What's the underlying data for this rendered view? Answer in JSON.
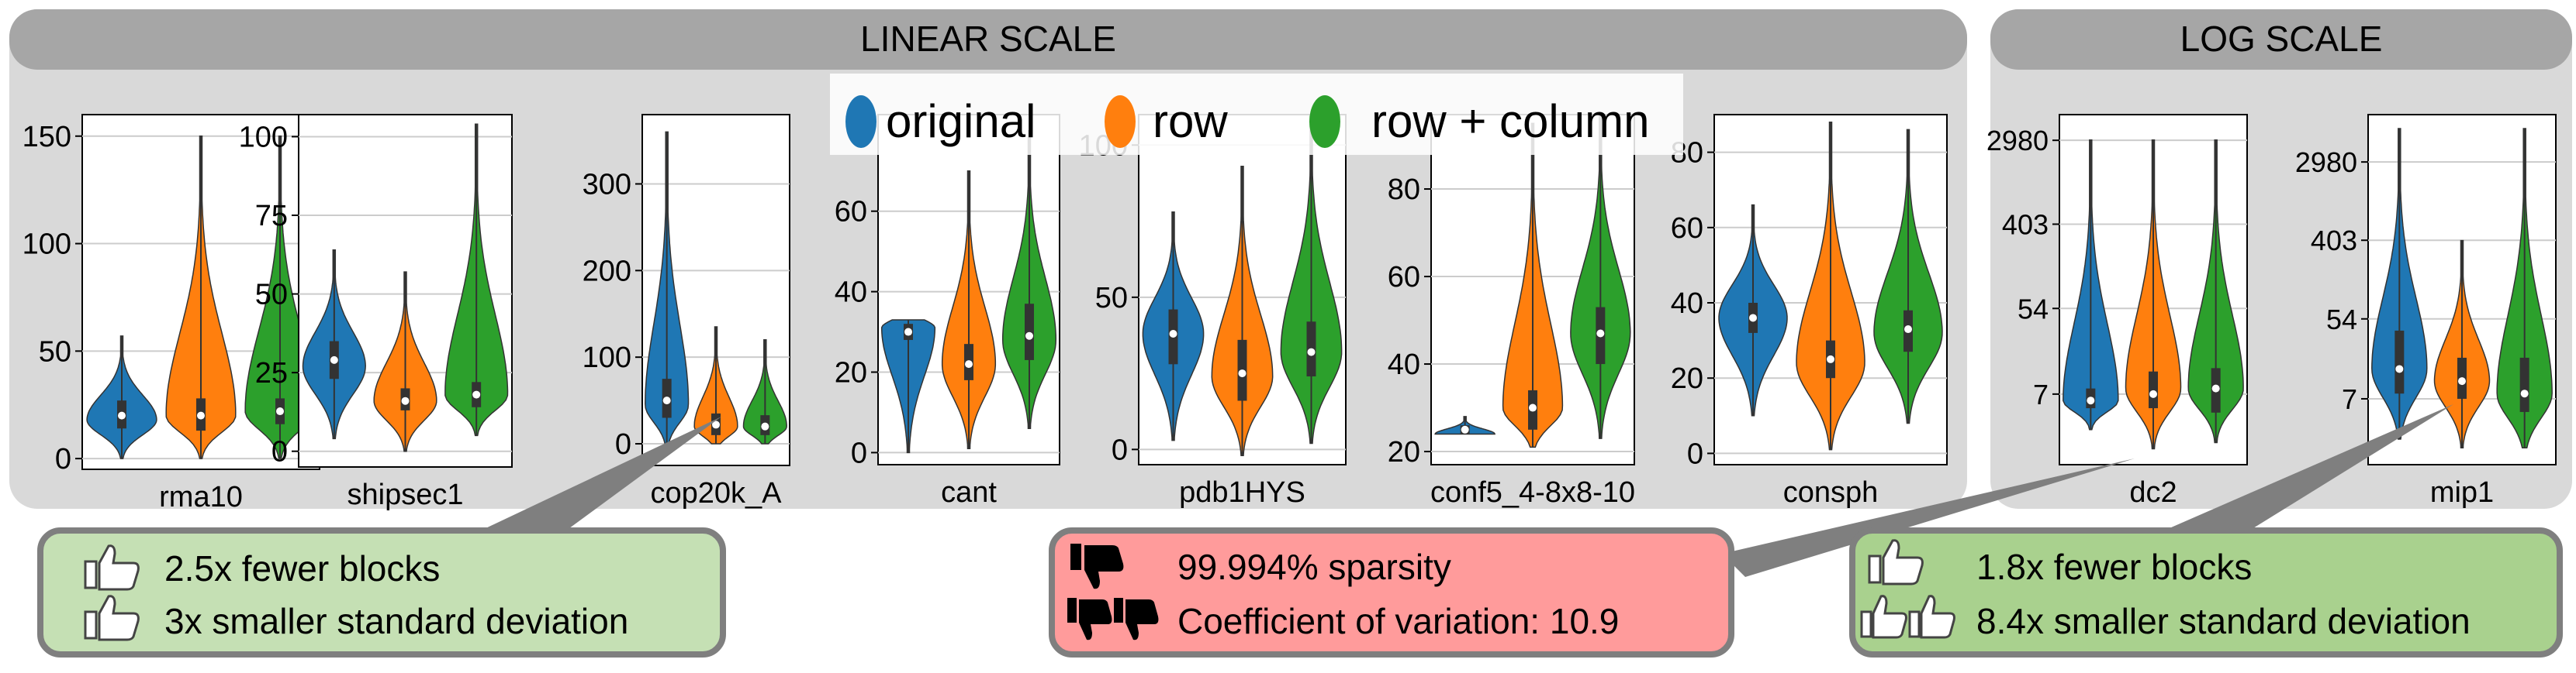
{
  "panels": {
    "linear_title": "LINEAR SCALE",
    "log_title": "LOG SCALE"
  },
  "legend": [
    {
      "label": "original",
      "color": "#1f77b4"
    },
    {
      "label": "row",
      "color": "#ff7f0e"
    },
    {
      "label": "row + column",
      "color": "#2ca02c"
    }
  ],
  "chart_data": [
    {
      "type": "violin",
      "xlabel": "rma10",
      "scale": "linear",
      "ylim": [
        -5,
        160
      ],
      "yticks": [
        0,
        50,
        100,
        150
      ],
      "yticklabels": [
        "0",
        "50",
        "100",
        "150"
      ],
      "series": [
        {
          "name": "original",
          "min": 0,
          "q1": 14,
          "median": 20,
          "q3": 27,
          "max": 57,
          "mode": 18
        },
        {
          "name": "row",
          "min": 0,
          "q1": 13,
          "median": 20,
          "q3": 28,
          "max": 150,
          "mode": 20
        },
        {
          "name": "row + column",
          "min": 0,
          "q1": 16,
          "median": 22,
          "q3": 28,
          "max": 150,
          "mode": 22
        }
      ]
    },
    {
      "type": "violin",
      "xlabel": "shipsec1",
      "scale": "linear",
      "ylim": [
        -5,
        107
      ],
      "yticks": [
        0,
        25,
        50,
        75,
        100
      ],
      "yticklabels": [
        "0",
        "25",
        "50",
        "75",
        "100"
      ],
      "series": [
        {
          "name": "original",
          "min": 4,
          "q1": 23,
          "median": 29,
          "q3": 35,
          "max": 64,
          "mode": 27
        },
        {
          "name": "row",
          "min": 0,
          "q1": 13,
          "median": 16,
          "q3": 20,
          "max": 57,
          "mode": 16
        },
        {
          "name": "row + column",
          "min": 5,
          "q1": 14,
          "median": 18,
          "q3": 22,
          "max": 104,
          "mode": 18
        }
      ]
    },
    {
      "type": "violin",
      "xlabel": "cop20k_A",
      "scale": "linear",
      "ylim": [
        -25,
        380
      ],
      "yticks": [
        0,
        100,
        200,
        300
      ],
      "yticklabels": [
        "0",
        "100",
        "200",
        "300"
      ],
      "series": [
        {
          "name": "original",
          "min": 0,
          "q1": 30,
          "median": 50,
          "q3": 75,
          "max": 360,
          "mode": 45
        },
        {
          "name": "row",
          "min": 0,
          "q1": 10,
          "median": 22,
          "q3": 35,
          "max": 135,
          "mode": 20
        },
        {
          "name": "row + column",
          "min": 0,
          "q1": 10,
          "median": 20,
          "q3": 33,
          "max": 120,
          "mode": 20
        }
      ]
    },
    {
      "type": "violin",
      "xlabel": "cant",
      "scale": "linear",
      "ylim": [
        -3,
        84
      ],
      "yticks": [
        0,
        20,
        40,
        60
      ],
      "yticklabels": [
        "0",
        "20",
        "40",
        "60"
      ],
      "series": [
        {
          "name": "original",
          "min": 0,
          "q1": 28,
          "median": 30,
          "q3": 32,
          "max": 33,
          "mode": 31
        },
        {
          "name": "row",
          "min": 1,
          "q1": 18,
          "median": 22,
          "q3": 27,
          "max": 70,
          "mode": 22
        },
        {
          "name": "row + column",
          "min": 6,
          "q1": 23,
          "median": 29,
          "q3": 37,
          "max": 80,
          "mode": 28
        }
      ]
    },
    {
      "type": "violin",
      "xlabel": "pdb1HYS",
      "scale": "linear",
      "ylim": [
        -5,
        110
      ],
      "yticks": [
        0,
        50,
        100
      ],
      "yticklabels": [
        "0",
        "50",
        "100"
      ],
      "series": [
        {
          "name": "original",
          "min": 3,
          "q1": 28,
          "median": 38,
          "q3": 46,
          "max": 78,
          "mode": 38
        },
        {
          "name": "row",
          "min": -2,
          "q1": 16,
          "median": 25,
          "q3": 36,
          "max": 93,
          "mode": 24
        },
        {
          "name": "row + column",
          "min": 2,
          "q1": 24,
          "median": 32,
          "q3": 42,
          "max": 110,
          "mode": 32
        }
      ]
    },
    {
      "type": "violin",
      "xlabel": "conf5_4-8x8-10",
      "scale": "linear",
      "ylim": [
        17,
        97
      ],
      "yticks": [
        20,
        40,
        60,
        80
      ],
      "yticklabels": [
        "20",
        "40",
        "60",
        "80"
      ],
      "series": [
        {
          "name": "original",
          "min": 24,
          "q1": 24,
          "median": 25,
          "q3": 26,
          "max": 28,
          "mode": 24
        },
        {
          "name": "row",
          "min": 21,
          "q1": 25,
          "median": 30,
          "q3": 34,
          "max": 95,
          "mode": 30
        },
        {
          "name": "row + column",
          "min": 23,
          "q1": 40,
          "median": 47,
          "q3": 53,
          "max": 97,
          "mode": 47
        }
      ]
    },
    {
      "type": "violin",
      "xlabel": "consph",
      "scale": "linear",
      "ylim": [
        -3,
        90
      ],
      "yticks": [
        0,
        20,
        40,
        60,
        80
      ],
      "yticklabels": [
        "0",
        "20",
        "40",
        "60",
        "80"
      ],
      "series": [
        {
          "name": "original",
          "min": 10,
          "q1": 32,
          "median": 36,
          "q3": 40,
          "max": 66,
          "mode": 36
        },
        {
          "name": "row",
          "min": 1,
          "q1": 20,
          "median": 25,
          "q3": 30,
          "max": 88,
          "mode": 24
        },
        {
          "name": "row + column",
          "min": 8,
          "q1": 27,
          "median": 33,
          "q3": 38,
          "max": 86,
          "mode": 32
        }
      ]
    },
    {
      "type": "violin",
      "xlabel": "dc2",
      "scale": "log",
      "ylim": [
        1.3,
        5500
      ],
      "yticks": [
        7,
        54,
        403,
        2980
      ],
      "yticklabels": [
        "7",
        "54",
        "403",
        "2980"
      ],
      "series": [
        {
          "name": "original",
          "min": 3,
          "q1": 5,
          "median": 6,
          "q3": 8,
          "max": 3000,
          "mode": 6
        },
        {
          "name": "row",
          "min": 1.9,
          "q1": 5,
          "median": 7,
          "q3": 12,
          "max": 3000,
          "mode": 8
        },
        {
          "name": "row + column",
          "min": 2.2,
          "q1": 4.5,
          "median": 8,
          "q3": 13,
          "max": 3000,
          "mode": 8
        }
      ]
    },
    {
      "type": "violin",
      "xlabel": "mip1",
      "scale": "log",
      "ylim": [
        1.3,
        10000
      ],
      "yticks": [
        7,
        54,
        403,
        2980
      ],
      "yticklabels": [
        "7",
        "54",
        "403",
        "2980"
      ],
      "series": [
        {
          "name": "original",
          "min": 2.5,
          "q1": 8,
          "median": 15,
          "q3": 40,
          "max": 7000,
          "mode": 15
        },
        {
          "name": "row",
          "min": 2,
          "q1": 7,
          "median": 11,
          "q3": 20,
          "max": 400,
          "mode": 11
        },
        {
          "name": "row + column",
          "min": 2,
          "q1": 5,
          "median": 8,
          "q3": 20,
          "max": 7000,
          "mode": 8
        }
      ]
    }
  ],
  "callouts": [
    {
      "lines": [
        "2.5x fewer blocks",
        "3x smaller standard deviation"
      ],
      "fill": "#c5e0b4",
      "kind": "good",
      "points_to": "cop20k_A"
    },
    {
      "lines": [
        "99.994% sparsity",
        "Coefficient of variation: 10.9"
      ],
      "fill": "#ff9b9b",
      "kind": "bad",
      "points_to": "dc2"
    },
    {
      "lines": [
        "1.8x fewer blocks",
        "8.4x smaller standard deviation"
      ],
      "fill": "#a9d18e",
      "kind": "good",
      "points_to": "mip1"
    }
  ]
}
